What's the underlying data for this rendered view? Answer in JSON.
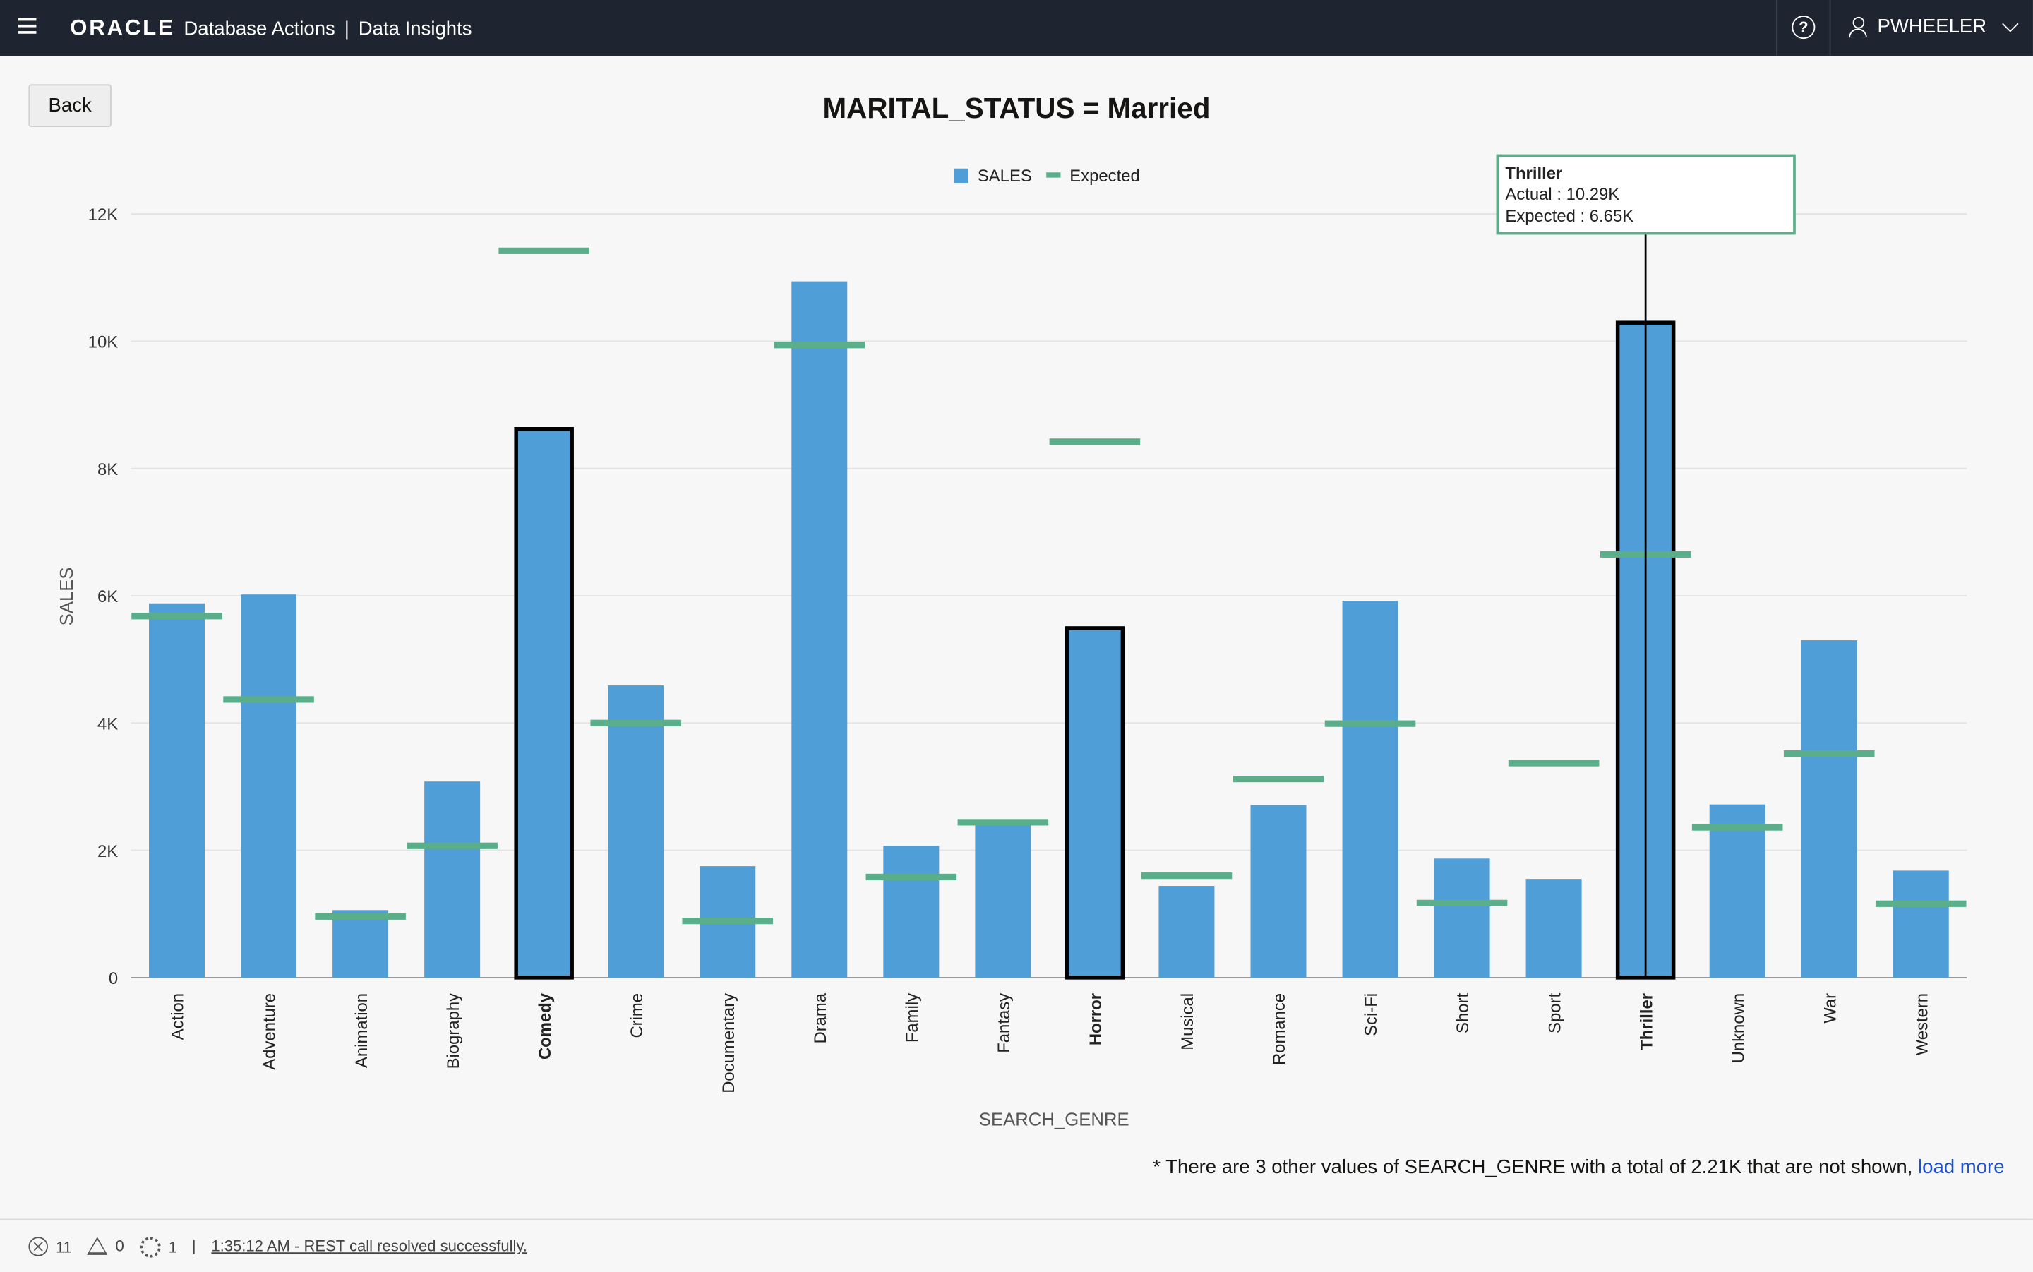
{
  "header": {
    "logo": "ORACLE",
    "app_name": "Database Actions",
    "separator": "|",
    "section": "Data Insights",
    "user": "PWHEELER",
    "help_icon": "?"
  },
  "back_label": "Back",
  "chart_data": {
    "type": "bar",
    "title": "MARITAL_STATUS = Married",
    "xlabel": "SEARCH_GENRE",
    "ylabel": "SALES",
    "ylim": [
      0,
      12000
    ],
    "yticks": [
      {
        "value": 0,
        "label": "0"
      },
      {
        "value": 2000,
        "label": "2K"
      },
      {
        "value": 4000,
        "label": "4K"
      },
      {
        "value": 6000,
        "label": "6K"
      },
      {
        "value": 8000,
        "label": "8K"
      },
      {
        "value": 10000,
        "label": "10K"
      },
      {
        "value": 12000,
        "label": "12K"
      }
    ],
    "categories": [
      "Action",
      "Adventure",
      "Animation",
      "Biography",
      "Comedy",
      "Crime",
      "Documentary",
      "Drama",
      "Family",
      "Fantasy",
      "Horror",
      "Musical",
      "Romance",
      "Sci-Fi",
      "Short",
      "Sport",
      "Thriller",
      "Unknown",
      "War",
      "Western"
    ],
    "series": [
      {
        "name": "SALES",
        "color": "#4f9ed8",
        "values": [
          5880,
          6020,
          1060,
          3080,
          8620,
          4590,
          1750,
          10940,
          2070,
          2420,
          5490,
          1440,
          2710,
          5920,
          1870,
          1550,
          10290,
          2720,
          5300,
          1680
        ]
      },
      {
        "name": "Expected",
        "color": "#5bae8a",
        "values": [
          5680,
          4370,
          960,
          2070,
          11420,
          4000,
          890,
          9940,
          1580,
          2440,
          8420,
          1600,
          3120,
          3990,
          1170,
          3370,
          6650,
          2360,
          3520,
          1160
        ]
      }
    ],
    "highlighted": [
      "Comedy",
      "Horror",
      "Thriller"
    ],
    "legend": {
      "position": "top-center",
      "items": [
        "SALES",
        "Expected"
      ]
    },
    "grid": true,
    "tooltip": {
      "category": "Thriller",
      "actual_label": "Actual : 10.29K",
      "expected_label": "Expected : 6.65K"
    }
  },
  "footnote": {
    "text": "* There are 3 other values of SEARCH_GENRE with a total of 2.21K that are not shown,",
    "link": "load more"
  },
  "status": {
    "errors": "11",
    "warnings": "0",
    "tasks": "1",
    "divider": "|",
    "message": "1:35:12 AM - REST call resolved successfully."
  }
}
